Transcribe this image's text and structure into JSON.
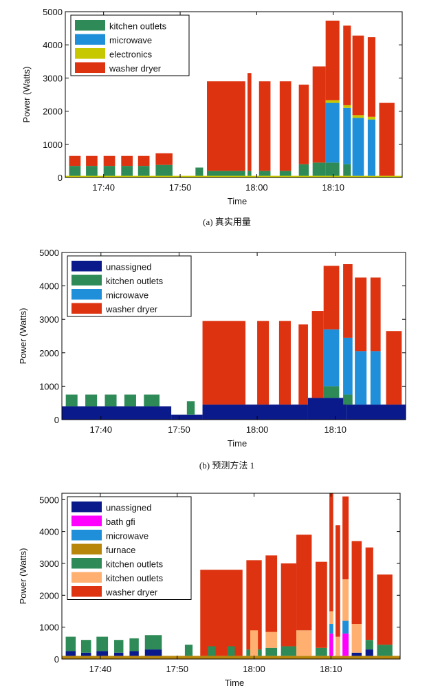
{
  "chart_data": [
    {
      "type": "area",
      "caption": "(a) 真实用量",
      "xlabel": "Time",
      "ylabel": "Power (Watts)",
      "xlim": [
        "17:35",
        "18:19"
      ],
      "ylim": [
        0,
        5000
      ],
      "x_ticks": [
        "17:40",
        "17:50",
        "18:00",
        "18:10"
      ],
      "y_ticks": [
        0,
        1000,
        2000,
        3000,
        4000,
        5000
      ],
      "legend_position": "top-left",
      "series": [
        {
          "name": "kitchen outlets",
          "color": "#2e8b57"
        },
        {
          "name": "microwave",
          "color": "#1e8fd8"
        },
        {
          "name": "electronics",
          "color": "#c8c800"
        },
        {
          "name": "washer dryer",
          "color": "#dd3311"
        }
      ],
      "base": 50,
      "segments": [
        {
          "start": "17:35.5",
          "end": "17:37.0",
          "levels": {
            "kitchen outlets": 300,
            "washer dryer": 300
          }
        },
        {
          "start": "17:37.7",
          "end": "17:39.2",
          "levels": {
            "kitchen outlets": 300,
            "washer dryer": 300
          }
        },
        {
          "start": "17:40.0",
          "end": "17:41.5",
          "levels": {
            "kitchen outlets": 300,
            "washer dryer": 300
          }
        },
        {
          "start": "17:42.3",
          "end": "17:43.8",
          "levels": {
            "kitchen outlets": 300,
            "washer dryer": 300
          }
        },
        {
          "start": "17:44.5",
          "end": "17:46.0",
          "levels": {
            "kitchen outlets": 300,
            "washer dryer": 300
          }
        },
        {
          "start": "17:46.8",
          "end": "17:49.0",
          "levels": {
            "kitchen outlets": 330,
            "washer dryer": 350
          }
        },
        {
          "start": "17:52.0",
          "end": "17:53.0",
          "levels": {
            "kitchen outlets": 250
          }
        },
        {
          "start": "17:53.5",
          "end": "17:58.5",
          "levels": {
            "kitchen outlets": 150,
            "washer dryer": 2700
          }
        },
        {
          "start": "17:58.8",
          "end": "17:59.3",
          "levels": {
            "kitchen outlets": 150,
            "washer dryer": 2950
          }
        },
        {
          "start": "18:00.3",
          "end": "18:01.8",
          "levels": {
            "kitchen outlets": 150,
            "washer dryer": 2700
          }
        },
        {
          "start": "18:03.0",
          "end": "18:04.5",
          "levels": {
            "kitchen outlets": 150,
            "washer dryer": 2700
          }
        },
        {
          "start": "18:05.5",
          "end": "18:06.8",
          "levels": {
            "kitchen outlets": 350,
            "washer dryer": 2400
          }
        },
        {
          "start": "18:07.3",
          "end": "18:09.0",
          "levels": {
            "kitchen outlets": 400,
            "washer dryer": 2900
          }
        },
        {
          "start": "18:09.0",
          "end": "18:10.8",
          "levels": {
            "kitchen outlets": 400,
            "microwave": 1800,
            "electronics": 80,
            "washer dryer": 2400
          }
        },
        {
          "start": "18:11.3",
          "end": "18:12.3",
          "levels": {
            "kitchen outlets": 350,
            "microwave": 1700,
            "electronics": 80,
            "washer dryer": 2400
          }
        },
        {
          "start": "18:12.5",
          "end": "18:14.0",
          "levels": {
            "microwave": 1750,
            "electronics": 80,
            "washer dryer": 2400
          }
        },
        {
          "start": "18:14.5",
          "end": "18:15.5",
          "levels": {
            "microwave": 1700,
            "electronics": 80,
            "washer dryer": 2400
          }
        },
        {
          "start": "18:16.0",
          "end": "18:18.0",
          "levels": {
            "washer dryer": 2200
          }
        }
      ]
    },
    {
      "type": "area",
      "caption": "(b) 预测方法 1",
      "xlabel": "Time",
      "ylabel": "Power (Watts)",
      "xlim": [
        "17:35",
        "18:19"
      ],
      "ylim": [
        0,
        5000
      ],
      "x_ticks": [
        "17:40",
        "17:50",
        "18:00",
        "18:10"
      ],
      "y_ticks": [
        0,
        1000,
        2000,
        3000,
        4000,
        5000
      ],
      "legend_position": "top-left",
      "series": [
        {
          "name": "unassigned",
          "color": "#0a1a8a"
        },
        {
          "name": "kitchen outlets",
          "color": "#2e8b57"
        },
        {
          "name": "microwave",
          "color": "#1e8fd8"
        },
        {
          "name": "washer dryer",
          "color": "#dd3311"
        }
      ],
      "segments": [
        {
          "start": "17:35.0",
          "end": "17:49.0",
          "levels": {
            "unassigned": 400
          }
        },
        {
          "start": "17:49.0",
          "end": "17:53.0",
          "levels": {
            "unassigned": 150
          }
        },
        {
          "start": "17:53.0",
          "end": "18:06.5",
          "levels": {
            "unassigned": 450
          }
        },
        {
          "start": "18:06.5",
          "end": "18:11.5",
          "levels": {
            "unassigned": 650
          }
        },
        {
          "start": "18:11.5",
          "end": "18:19.0",
          "levels": {
            "unassigned": 450
          }
        },
        {
          "start": "17:35.5",
          "end": "17:37.0",
          "levels": {
            "kitchen outlets": 350
          }
        },
        {
          "start": "17:38.0",
          "end": "17:39.5",
          "levels": {
            "kitchen outlets": 350
          }
        },
        {
          "start": "17:40.5",
          "end": "17:42.0",
          "levels": {
            "kitchen outlets": 350
          }
        },
        {
          "start": "17:43.0",
          "end": "17:44.5",
          "levels": {
            "kitchen outlets": 350
          }
        },
        {
          "start": "17:45.5",
          "end": "17:47.5",
          "levels": {
            "kitchen outlets": 350
          }
        },
        {
          "start": "17:51.0",
          "end": "17:52.0",
          "levels": {
            "kitchen outlets": 400
          }
        },
        {
          "start": "17:53.0",
          "end": "17:58.5",
          "levels": {
            "washer dryer": 2500
          }
        },
        {
          "start": "18:00.0",
          "end": "18:01.5",
          "levels": {
            "washer dryer": 2500
          }
        },
        {
          "start": "18:02.8",
          "end": "18:04.3",
          "levels": {
            "washer dryer": 2500
          }
        },
        {
          "start": "18:05.3",
          "end": "18:06.5",
          "levels": {
            "washer dryer": 2400
          }
        },
        {
          "start": "18:07.0",
          "end": "18:08.5",
          "levels": {
            "washer dryer": 2600
          }
        },
        {
          "start": "18:08.5",
          "end": "18:10.5",
          "levels": {
            "kitchen outlets": 350,
            "microwave": 1700,
            "washer dryer": 1900
          }
        },
        {
          "start": "18:11.0",
          "end": "18:12.2",
          "levels": {
            "kitchen outlets": 300,
            "microwave": 1700,
            "washer dryer": 2200
          }
        },
        {
          "start": "18:12.5",
          "end": "18:14.0",
          "levels": {
            "microwave": 1600,
            "washer dryer": 2200
          }
        },
        {
          "start": "18:14.5",
          "end": "18:15.8",
          "levels": {
            "microwave": 1600,
            "washer dryer": 2200
          }
        },
        {
          "start": "18:16.5",
          "end": "18:18.5",
          "levels": {
            "washer dryer": 2200
          }
        }
      ]
    },
    {
      "type": "area",
      "xlabel": "Time",
      "ylabel": "Power (Watts)",
      "xlim": [
        "17:35",
        "18:19"
      ],
      "ylim": [
        0,
        5200
      ],
      "x_ticks": [
        "17:40",
        "17:50",
        "18:00",
        "18:10"
      ],
      "y_ticks": [
        0,
        1000,
        2000,
        3000,
        4000,
        5000
      ],
      "legend_position": "top-left",
      "series": [
        {
          "name": "unassigned",
          "color": "#0a1a8a"
        },
        {
          "name": "bath gfi",
          "color": "#ff00ff"
        },
        {
          "name": "microwave",
          "color": "#1e8fd8"
        },
        {
          "name": "furnace",
          "color": "#b8860b"
        },
        {
          "name": "kitchen outlets",
          "color": "#2e8b57"
        },
        {
          "name": "kitchen outlets",
          "color": "#ffb070"
        },
        {
          "name": "washer dryer",
          "color": "#dd3311"
        }
      ],
      "segments": [
        {
          "start": "17:35.0",
          "end": "18:19.0",
          "levels": {
            "furnace": 100
          }
        },
        {
          "start": "17:35.5",
          "end": "17:36.8",
          "levels": {
            "unassigned": 150,
            "kitchen outlets": 450
          }
        },
        {
          "start": "17:37.5",
          "end": "17:38.8",
          "levels": {
            "unassigned": 100,
            "kitchen outlets": 400
          }
        },
        {
          "start": "17:39.5",
          "end": "17:41.0",
          "levels": {
            "unassigned": 150,
            "kitchen outlets": 450
          }
        },
        {
          "start": "17:41.8",
          "end": "17:43.0",
          "levels": {
            "unassigned": 100,
            "kitchen outlets": 400
          }
        },
        {
          "start": "17:43.8",
          "end": "17:45.0",
          "levels": {
            "unassigned": 150,
            "kitchen outlets": 400
          }
        },
        {
          "start": "17:45.8",
          "end": "17:48.0",
          "levels": {
            "unassigned": 200,
            "kitchen outlets": 450
          }
        },
        {
          "start": "17:51.0",
          "end": "17:52.0",
          "levels": {
            "kitchen outlets": 350
          }
        },
        {
          "start": "17:53.0",
          "end": "17:58.5",
          "levels": {
            "washer dryer": 2700
          }
        },
        {
          "start": "17:54.0",
          "end": "17:55.0",
          "levels": {
            "kitchen outlets": 300
          }
        },
        {
          "start": "17:56.5",
          "end": "17:57.5",
          "levels": {
            "kitchen outlets": 300
          }
        },
        {
          "start": "17:59.0",
          "end": "18:01.0",
          "levels": {
            "kitchen outlets": 200,
            "washer dryer": 2800
          }
        },
        {
          "start": "17:59.5",
          "end": "18:00.5",
          "levels": {
            "kitchen outlets (2)": 800
          }
        },
        {
          "start": "18:01.5",
          "end": "18:03.0",
          "levels": {
            "kitchen outlets": 250,
            "kitchen outlets (2)": 500,
            "washer dryer": 2400
          }
        },
        {
          "start": "18:03.5",
          "end": "18:05.5",
          "levels": {
            "kitchen outlets": 300,
            "washer dryer": 2600
          }
        },
        {
          "start": "18:05.5",
          "end": "18:07.5",
          "levels": {
            "kitchen outlets (2)": 800,
            "washer dryer": 3000
          }
        },
        {
          "start": "18:08.0",
          "end": "18:09.5",
          "levels": {
            "kitchen outlets": 250,
            "washer dryer": 2700
          }
        },
        {
          "start": "18:09.8",
          "end": "18:10.3",
          "levels": {
            "bath gfi": 700,
            "microwave": 300,
            "kitchen outlets (2)": 400,
            "washer dryer": 3800
          }
        },
        {
          "start": "18:10.6",
          "end": "18:11.2",
          "levels": {
            "kitchen outlets (2)": 600,
            "washer dryer": 3500
          }
        },
        {
          "start": "18:11.5",
          "end": "18:12.3",
          "levels": {
            "bath gfi": 700,
            "microwave": 400,
            "kitchen outlets (2)": 1300,
            "washer dryer": 2600
          }
        },
        {
          "start": "18:12.7",
          "end": "18:14.0",
          "levels": {
            "unassigned": 100,
            "kitchen outlets (2)": 900,
            "washer dryer": 2600
          }
        },
        {
          "start": "18:14.5",
          "end": "18:15.5",
          "levels": {
            "unassigned": 200,
            "kitchen outlets": 300,
            "washer dryer": 2900
          }
        },
        {
          "start": "18:16.0",
          "end": "18:18.0",
          "levels": {
            "kitchen outlets": 350,
            "washer dryer": 2200
          }
        }
      ]
    }
  ]
}
